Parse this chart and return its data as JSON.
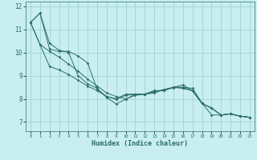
{
  "xlabel": "Humidex (Indice chaleur)",
  "background_color": "#c8eef0",
  "grid_color": "#99cccc",
  "line_color": "#2d6e6a",
  "xlim": [
    -0.5,
    23.5
  ],
  "ylim": [
    6.6,
    12.2
  ],
  "yticks": [
    7,
    8,
    9,
    10,
    11,
    12
  ],
  "xticks": [
    0,
    1,
    2,
    3,
    4,
    5,
    6,
    7,
    8,
    9,
    10,
    11,
    12,
    13,
    14,
    15,
    16,
    17,
    18,
    19,
    20,
    21,
    22,
    23
  ],
  "series": [
    [
      11.3,
      11.7,
      10.4,
      10.1,
      10.0,
      9.0,
      8.65,
      8.45,
      8.05,
      7.78,
      7.98,
      8.2,
      8.2,
      8.35,
      8.35,
      8.5,
      8.6,
      8.35,
      7.8,
      7.6,
      7.3,
      7.35,
      7.25,
      7.2
    ],
    [
      11.3,
      11.7,
      10.15,
      10.05,
      10.05,
      9.85,
      9.55,
      8.4,
      8.1,
      7.98,
      8.15,
      8.2,
      8.2,
      8.25,
      8.4,
      8.5,
      8.5,
      8.45,
      7.82,
      7.3,
      7.3,
      7.35,
      7.25,
      7.2
    ],
    [
      11.3,
      10.35,
      10.05,
      9.8,
      9.5,
      9.2,
      8.85,
      8.55,
      8.25,
      8.1,
      8.0,
      8.15,
      8.2,
      8.3,
      8.4,
      8.48,
      8.48,
      8.35,
      7.8,
      7.6,
      7.3,
      7.35,
      7.25,
      7.2
    ],
    [
      11.3,
      10.35,
      9.4,
      9.25,
      9.05,
      8.8,
      8.55,
      8.35,
      8.1,
      8.0,
      8.2,
      8.2,
      8.2,
      8.35,
      8.35,
      8.5,
      8.45,
      8.35,
      7.8,
      7.6,
      7.3,
      7.35,
      7.25,
      7.2
    ]
  ]
}
